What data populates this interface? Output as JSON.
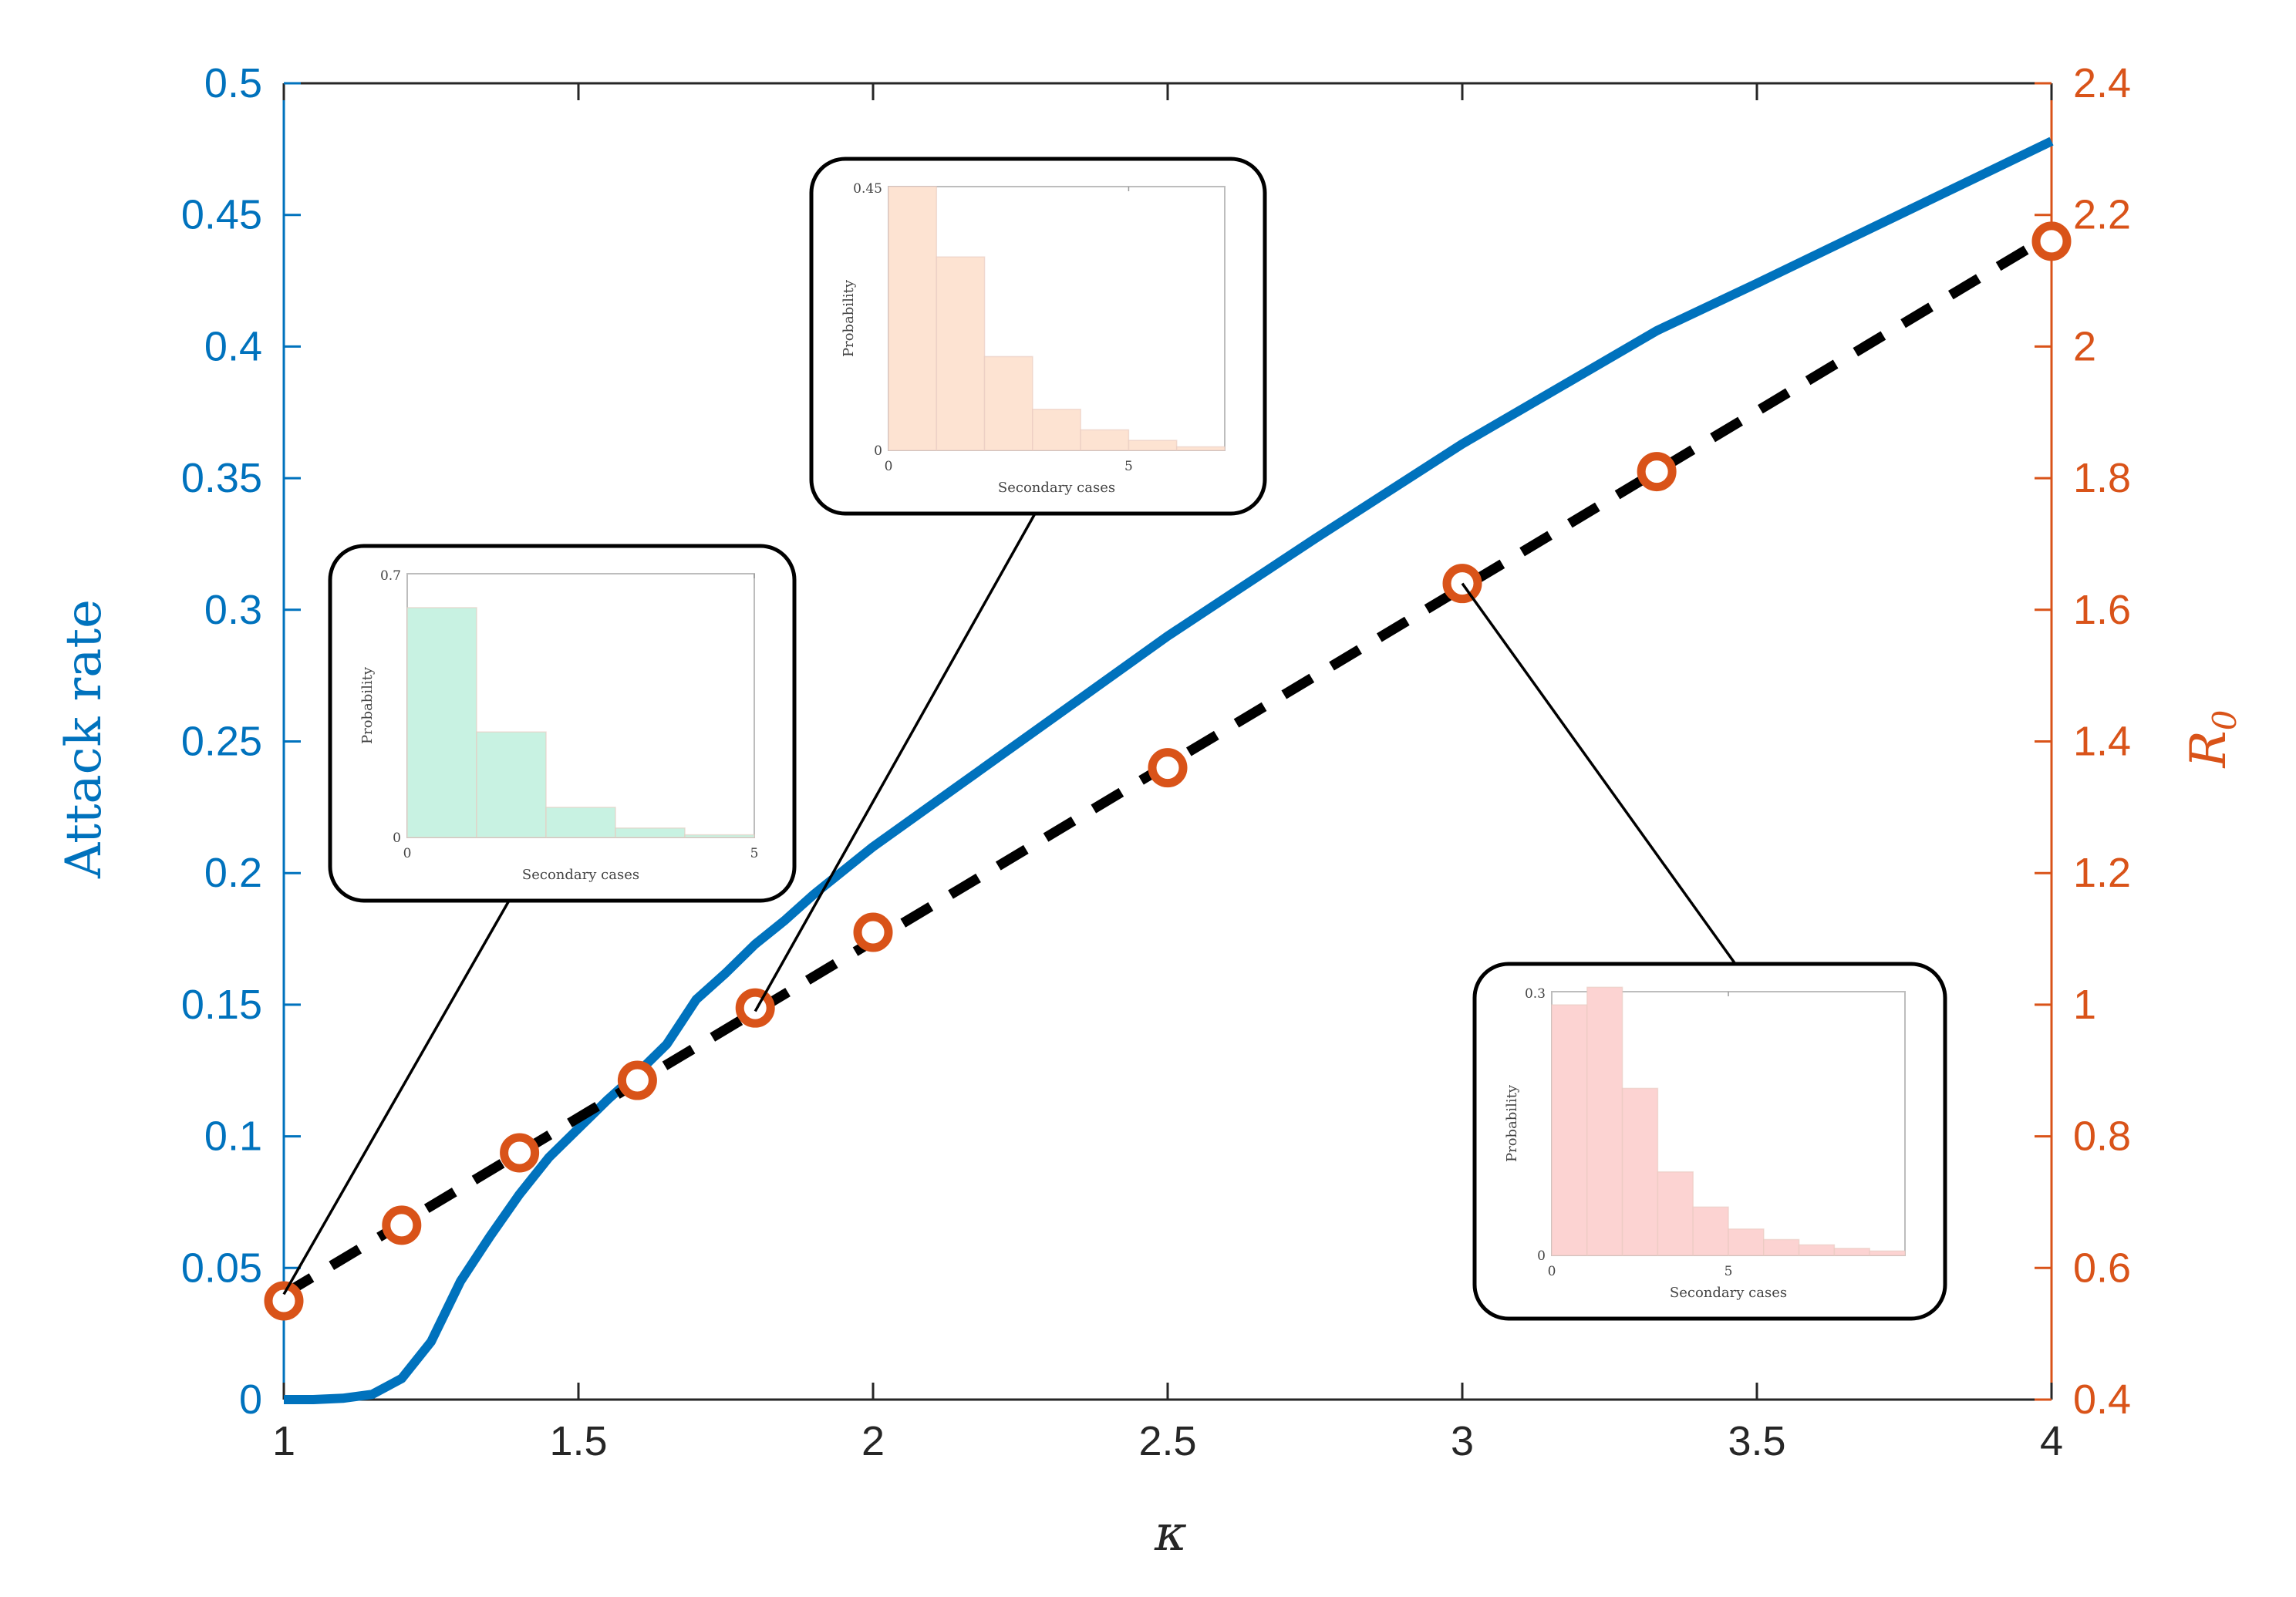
{
  "chart_data": {
    "type": "line",
    "xlabel": "κ",
    "x_ticks": [
      "1",
      "1.5",
      "2",
      "2.5",
      "3",
      "3.5",
      "4"
    ],
    "xlim": [
      1,
      4
    ],
    "left_axis": {
      "ylabel": "Attack rate",
      "ylim": [
        0,
        0.5
      ],
      "ticks": [
        "0",
        "0.05",
        "0.1",
        "0.15",
        "0.2",
        "0.25",
        "0.3",
        "0.35",
        "0.4",
        "0.45",
        "0.5"
      ],
      "color": "#0072BD"
    },
    "right_axis": {
      "ylabel_main": "R",
      "ylabel_sub": "0",
      "ylim": [
        0.4,
        2.4
      ],
      "ticks": [
        "0.4",
        "0.6",
        "0.8",
        "1",
        "1.2",
        "1.4",
        "1.6",
        "1.8",
        "2",
        "2.2",
        "2.4"
      ],
      "color": "#D95319"
    },
    "series": [
      {
        "axis": "left",
        "style": "solid",
        "color": "#0072BD",
        "x": [
          1.0,
          1.05,
          1.1,
          1.15,
          1.2,
          1.25,
          1.3,
          1.35,
          1.4,
          1.45,
          1.5,
          1.55,
          1.6,
          1.65,
          1.7,
          1.75,
          1.8,
          1.85,
          1.9,
          2.0,
          2.25,
          2.5,
          2.75,
          3.0,
          3.33,
          3.5,
          3.75,
          4.0
        ],
        "y": [
          0.0,
          0.0,
          0.0005,
          0.002,
          0.008,
          0.022,
          0.045,
          0.062,
          0.078,
          0.092,
          0.103,
          0.114,
          0.124,
          0.135,
          0.152,
          0.162,
          0.173,
          0.182,
          0.192,
          0.21,
          0.25,
          0.29,
          0.327,
          0.363,
          0.406,
          0.424,
          0.451,
          0.478
        ]
      },
      {
        "axis": "right",
        "style": "dashed",
        "color": "#000000",
        "x": [
          1.0,
          4.0
        ],
        "y": [
          0.56,
          2.17
        ]
      },
      {
        "axis": "right",
        "style": "markers",
        "color": "#D95319",
        "x": [
          1.0,
          1.2,
          1.4,
          1.6,
          1.8,
          2.0,
          2.5,
          3.0,
          3.33,
          4.0
        ],
        "y": [
          0.55,
          0.665,
          0.775,
          0.885,
          0.995,
          1.11,
          1.36,
          1.64,
          1.81,
          2.16
        ]
      }
    ],
    "insets": [
      {
        "anchor_x": 1.0,
        "anchor_axis": "right",
        "anchor_y": 0.56,
        "bar_color": "#C8F2E2",
        "ylabel": "Probability",
        "xlabel": "Secondary cases",
        "ymax_label": "0.7",
        "y0_label": "0",
        "xtick_labels": [
          "0",
          "5"
        ],
        "xmax": 5,
        "ymax": 0.7,
        "values": [
          0.61,
          0.28,
          0.08,
          0.025,
          0.007
        ]
      },
      {
        "anchor_x": 1.8,
        "anchor_axis": "right",
        "anchor_y": 0.99,
        "bar_color": "#FDE3D2",
        "ylabel": "Probability",
        "xlabel": "Secondary cases",
        "ymax_label": "0.45",
        "y0_label": "0",
        "xtick_labels": [
          "0",
          "5"
        ],
        "xmax": 7,
        "ymax": 0.45,
        "values": [
          0.45,
          0.33,
          0.16,
          0.07,
          0.035,
          0.017,
          0.006
        ]
      },
      {
        "anchor_x": 3.0,
        "anchor_axis": "right",
        "anchor_y": 1.64,
        "bar_color": "#FCD3D2",
        "ylabel": "Probability",
        "xlabel": "Secondary cases",
        "ymax_label": "0.3",
        "y0_label": "0",
        "xtick_labels": [
          "0",
          "5"
        ],
        "xmax": 10,
        "ymax": 0.3,
        "values": [
          0.285,
          0.305,
          0.19,
          0.095,
          0.055,
          0.03,
          0.018,
          0.012,
          0.008,
          0.005
        ]
      }
    ]
  }
}
